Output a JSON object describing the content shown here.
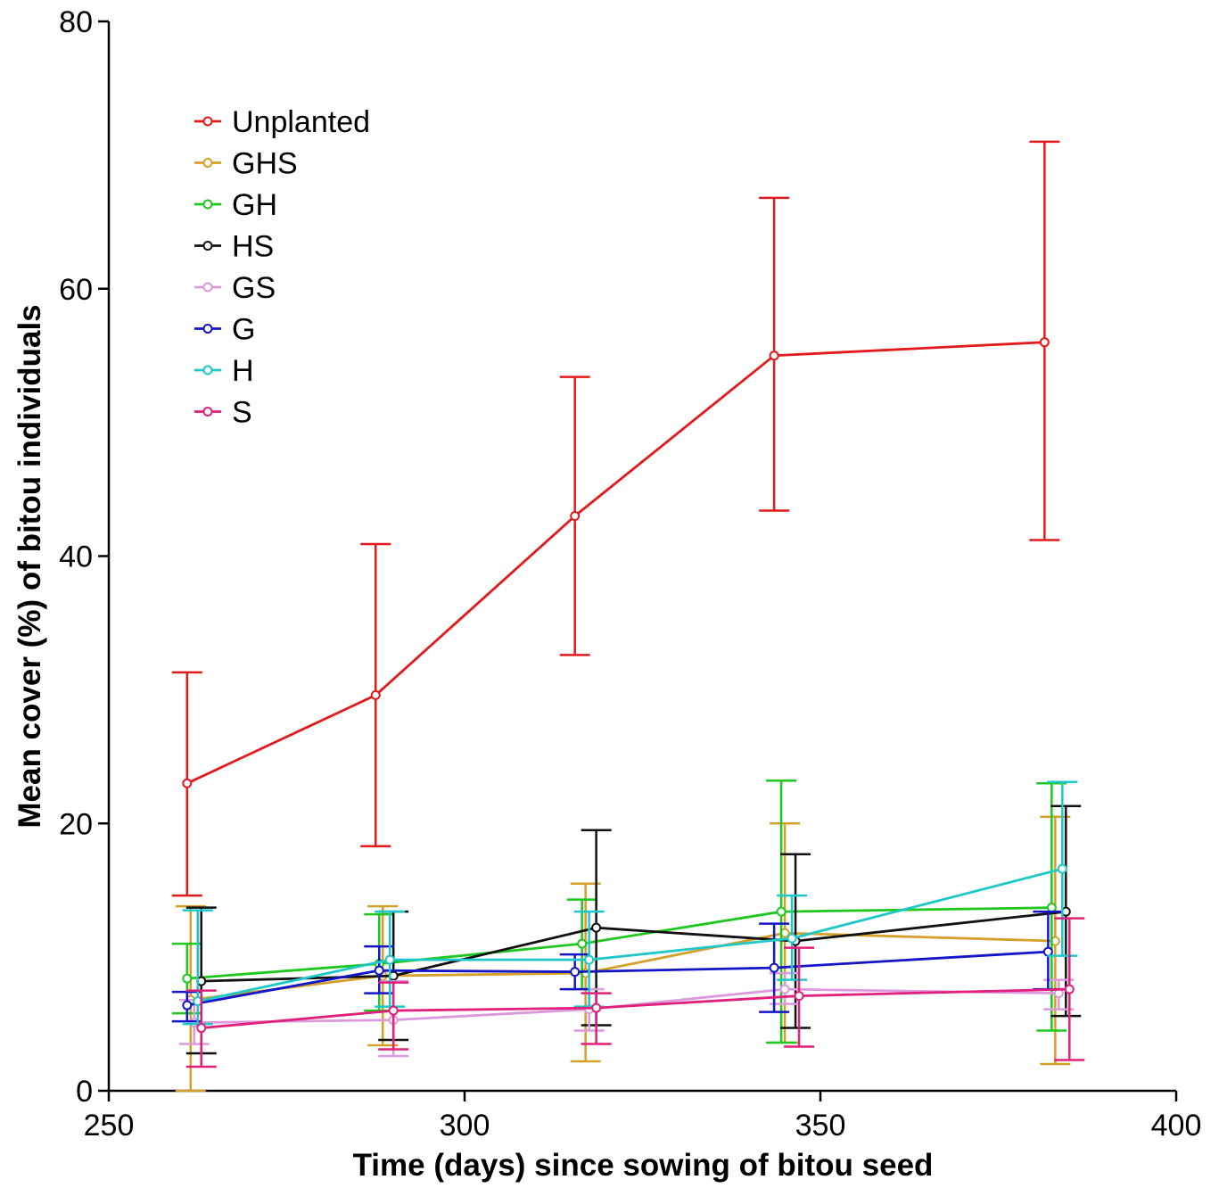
{
  "chart_data": {
    "type": "line",
    "title": "",
    "xlabel": "Time (days) since sowing of bitou seed",
    "ylabel": "Mean cover (%) of bitou individuals",
    "xlim": [
      250,
      400
    ],
    "ylim": [
      0,
      80
    ],
    "xticks": [
      250,
      300,
      350,
      400
    ],
    "yticks": [
      0,
      20,
      40,
      60,
      80
    ],
    "grid": false,
    "legend_position": "top-left",
    "error_bars": true,
    "series": [
      {
        "name": "Unplanted",
        "color": "#e31a1c",
        "x": [
          261,
          287.5,
          315.5,
          343.5,
          381.5
        ],
        "y": [
          23,
          29.6,
          43,
          55,
          56
        ],
        "err_upper": [
          31.3,
          40.9,
          53.4,
          66.8,
          71.0
        ],
        "err_lower": [
          14.6,
          18.3,
          32.6,
          43.4,
          41.2
        ]
      },
      {
        "name": "GHS",
        "color": "#d4a02a",
        "x": [
          261.5,
          288.5,
          317,
          345,
          383
        ],
        "y": [
          6.8,
          8.6,
          8.8,
          11.8,
          11.2
        ],
        "err_upper": [
          13.8,
          13.8,
          15.5,
          20.0,
          20.5
        ],
        "err_lower": [
          0,
          3.4,
          2.2,
          3.6,
          2.0
        ]
      },
      {
        "name": "GH",
        "color": "#1ec81e",
        "x": [
          261,
          288,
          316.5,
          344.5,
          382.5
        ],
        "y": [
          8.4,
          9.5,
          11.0,
          13.4,
          13.7
        ],
        "err_upper": [
          11.0,
          13.2,
          14.3,
          23.2,
          23.0
        ],
        "err_lower": [
          5.8,
          6.0,
          7.6,
          3.6,
          4.5
        ]
      },
      {
        "name": "HS",
        "color": "#111111",
        "x": [
          263,
          290,
          318.5,
          346.5,
          384.5
        ],
        "y": [
          8.2,
          8.6,
          12.2,
          11.2,
          13.4
        ],
        "err_upper": [
          13.7,
          13.4,
          19.5,
          17.7,
          21.3
        ],
        "err_lower": [
          2.8,
          3.8,
          4.9,
          4.7,
          5.6
        ]
      },
      {
        "name": "GS",
        "color": "#dd99dd",
        "x": [
          262,
          290,
          317.5,
          345,
          383.5
        ],
        "y": [
          5.1,
          5.3,
          6.1,
          7.6,
          7.3
        ],
        "err_upper": [
          6.8,
          8.2,
          7.6,
          8.8,
          8.3
        ],
        "err_lower": [
          3.5,
          2.6,
          4.5,
          6.5,
          6.1
        ]
      },
      {
        "name": "G",
        "color": "#1414c8",
        "x": [
          261,
          288,
          315.5,
          343.5,
          382
        ],
        "y": [
          6.4,
          9.0,
          8.9,
          9.2,
          10.4
        ],
        "err_upper": [
          7.4,
          10.8,
          10.2,
          12.5,
          13.4
        ],
        "err_lower": [
          5.2,
          7.3,
          7.6,
          5.9,
          7.6
        ]
      },
      {
        "name": "H",
        "color": "#1ec8c8",
        "x": [
          262.5,
          289.5,
          317.5,
          346,
          384
        ],
        "y": [
          6.7,
          9.8,
          9.8,
          11.4,
          16.6
        ],
        "err_upper": [
          13.5,
          13.4,
          13.4,
          14.6,
          23.1
        ],
        "err_lower": [
          5.0,
          6.3,
          6.3,
          8.3,
          10.1
        ]
      },
      {
        "name": "S",
        "color": "#e0207a",
        "x": [
          263,
          290,
          318.5,
          347,
          385
        ],
        "y": [
          4.7,
          6.0,
          6.2,
          7.1,
          7.6
        ],
        "err_upper": [
          7.5,
          8.1,
          7.3,
          10.7,
          12.9
        ],
        "err_lower": [
          1.8,
          3.1,
          3.5,
          3.3,
          2.3
        ]
      }
    ]
  }
}
